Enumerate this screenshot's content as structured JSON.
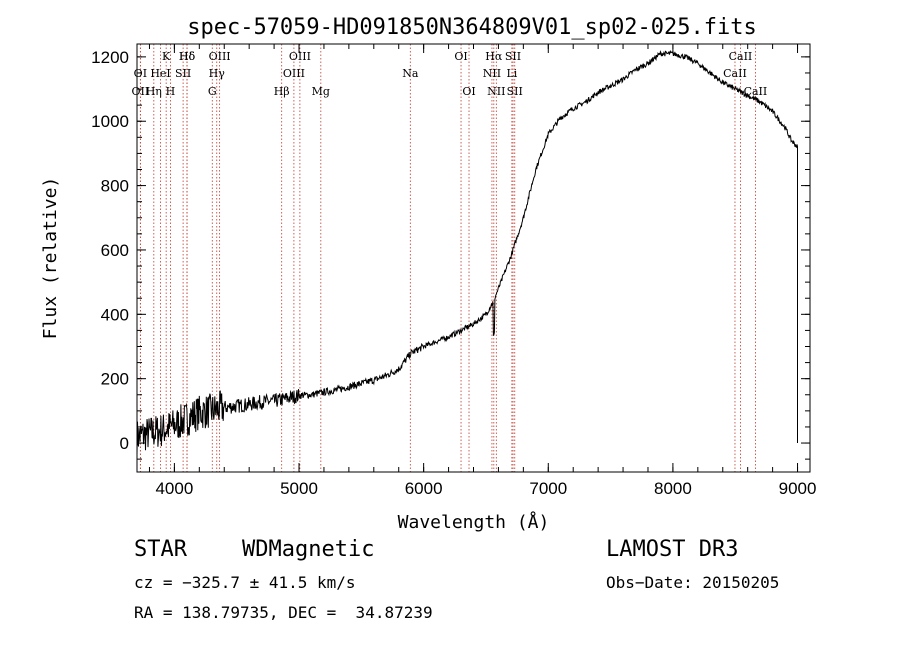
{
  "chart_data": {
    "type": "line",
    "title": "spec-57059-HD091850N364809V01_sp02-025.fits",
    "xlabel": "Wavelength (Å)",
    "ylabel": "Flux (relative)",
    "xlim": [
      3700,
      9100
    ],
    "ylim": [
      -90,
      1240
    ],
    "xticks": [
      4000,
      5000,
      6000,
      7000,
      8000,
      9000
    ],
    "yticks": [
      0,
      200,
      400,
      600,
      800,
      1000,
      1200
    ],
    "grid": false,
    "series": [
      {
        "name": "flux",
        "color": "#000000",
        "x": [
          3700,
          3800,
          3900,
          4000,
          4100,
          4200,
          4300,
          4400,
          4500,
          4600,
          4700,
          4800,
          4900,
          5000,
          5100,
          5200,
          5300,
          5400,
          5500,
          5600,
          5700,
          5800,
          5900,
          6000,
          6100,
          6200,
          6300,
          6400,
          6500,
          6560,
          6600,
          6700,
          6800,
          6900,
          7000,
          7100,
          7200,
          7300,
          7400,
          7500,
          7600,
          7700,
          7800,
          7900,
          8000,
          8100,
          8200,
          8300,
          8400,
          8500,
          8600,
          8700,
          8800,
          8900,
          8950,
          9000
        ],
        "y": [
          20,
          30,
          40,
          55,
          75,
          95,
          100,
          110,
          115,
          120,
          128,
          130,
          138,
          148,
          150,
          158,
          165,
          175,
          185,
          195,
          210,
          230,
          280,
          300,
          315,
          330,
          350,
          370,
          400,
          440,
          480,
          580,
          700,
          850,
          960,
          1010,
          1040,
          1060,
          1090,
          1110,
          1130,
          1160,
          1180,
          1210,
          1210,
          1200,
          1180,
          1150,
          1120,
          1100,
          1080,
          1060,
          1030,
          980,
          940,
          920
        ]
      }
    ],
    "lines": [
      {
        "label": "Hδ",
        "x": 4101,
        "row": 0
      },
      {
        "label": "K",
        "x": 3934,
        "row": 0
      },
      {
        "label": "Hδ",
        "x": 4102,
        "row": 0
      },
      {
        "label": "OIII",
        "x": 4363,
        "row": 0
      },
      {
        "label": "OIII",
        "x": 5007,
        "row": 0
      },
      {
        "label": "OI",
        "x": 6300,
        "row": 0
      },
      {
        "label": "Hα",
        "x": 6563,
        "row": 0
      },
      {
        "label": "SII",
        "x": 6717,
        "row": 0
      },
      {
        "label": "CaII",
        "x": 8542,
        "row": 0
      },
      {
        "label": "OI",
        "x": 3727,
        "row": 1
      },
      {
        "label": "HeI",
        "x": 3889,
        "row": 1
      },
      {
        "label": "SII",
        "x": 4070,
        "row": 1
      },
      {
        "label": "Hγ",
        "x": 4340,
        "row": 1
      },
      {
        "label": "OIII",
        "x": 4959,
        "row": 1
      },
      {
        "label": "Na",
        "x": 5893,
        "row": 1
      },
      {
        "label": "NII",
        "x": 6548,
        "row": 1
      },
      {
        "label": "Li",
        "x": 6708,
        "row": 1
      },
      {
        "label": "CaII",
        "x": 8498,
        "row": 1
      },
      {
        "label": "OII",
        "x": 3727,
        "row": 2
      },
      {
        "label": "Hη",
        "x": 3835,
        "row": 2
      },
      {
        "label": "H",
        "x": 3968,
        "row": 2
      },
      {
        "label": "G",
        "x": 4304,
        "row": 2
      },
      {
        "label": "Hβ",
        "x": 4861,
        "row": 2
      },
      {
        "label": "Mg",
        "x": 5175,
        "row": 2
      },
      {
        "label": "OI",
        "x": 6364,
        "row": 2
      },
      {
        "label": "NII",
        "x": 6583,
        "row": 2
      },
      {
        "label": "SII",
        "x": 6731,
        "row": 2
      },
      {
        "label": "CaII",
        "x": 8662,
        "row": 2
      }
    ]
  },
  "footer": {
    "object_class": "STAR",
    "subclass": "WDMagnetic",
    "survey": "LAMOST DR3",
    "cz": "cz = −325.7 ± 41.5 km/s",
    "obs_date": "Obs−Date: 20150205",
    "coords": "RA = 138.79735, DEC =  34.87239"
  }
}
